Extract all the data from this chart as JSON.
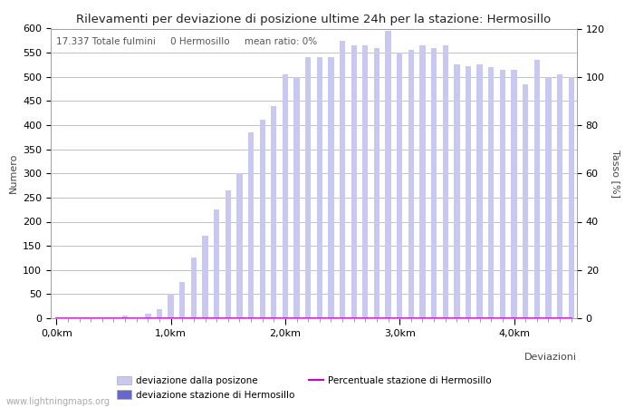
{
  "title": "Rilevamenti per deviazione di posizione ultime 24h per la stazione: Hermosillo",
  "subtitle": "17.337 Totale fulmini     0 Hermosillo     mean ratio: 0%",
  "xlabel": "Deviazioni",
  "ylabel_left": "Numero",
  "ylabel_right": "Tasso [%]",
  "ylim_left": [
    0,
    600
  ],
  "ylim_right": [
    0,
    120
  ],
  "bar_color_light": "#c8c8f0",
  "bar_color_dark": "#6666cc",
  "line_color": "#cc00cc",
  "background_color": "#ffffff",
  "grid_color": "#aaaaaa",
  "watermark": "www.lightningmaps.org",
  "xtick_labels": [
    "0,0km",
    "1,0km",
    "2,0km",
    "3,0km",
    "4,0km"
  ],
  "xtick_positions": [
    0,
    10,
    20,
    30,
    40
  ],
  "ytick_left": [
    0,
    50,
    100,
    150,
    200,
    250,
    300,
    350,
    400,
    450,
    500,
    550,
    600
  ],
  "ytick_right": [
    0,
    20,
    40,
    60,
    80,
    100,
    120
  ],
  "bar_values": [
    0,
    0,
    0,
    0,
    0,
    0,
    5,
    0,
    10,
    18,
    50,
    75,
    125,
    170,
    225,
    265,
    300,
    385,
    412,
    440,
    505,
    500,
    540,
    540,
    540,
    575,
    565,
    565,
    560,
    595,
    550,
    555,
    565,
    560,
    565,
    525,
    523,
    525,
    520,
    515,
    515,
    485,
    535,
    500,
    505,
    500
  ],
  "dark_bar_values": [
    0,
    0,
    0,
    0,
    0,
    0,
    0,
    0,
    0,
    0,
    0,
    0,
    0,
    0,
    0,
    0,
    0,
    0,
    0,
    0,
    0,
    0,
    0,
    0,
    0,
    0,
    0,
    0,
    0,
    0,
    0,
    0,
    0,
    0,
    0,
    0,
    0,
    0,
    0,
    0,
    0,
    0,
    0,
    0,
    0,
    0
  ],
  "legend_labels": [
    "deviazione dalla posizone",
    "deviazione stazione di Hermosillo",
    "Percentuale stazione di Hermosillo"
  ]
}
